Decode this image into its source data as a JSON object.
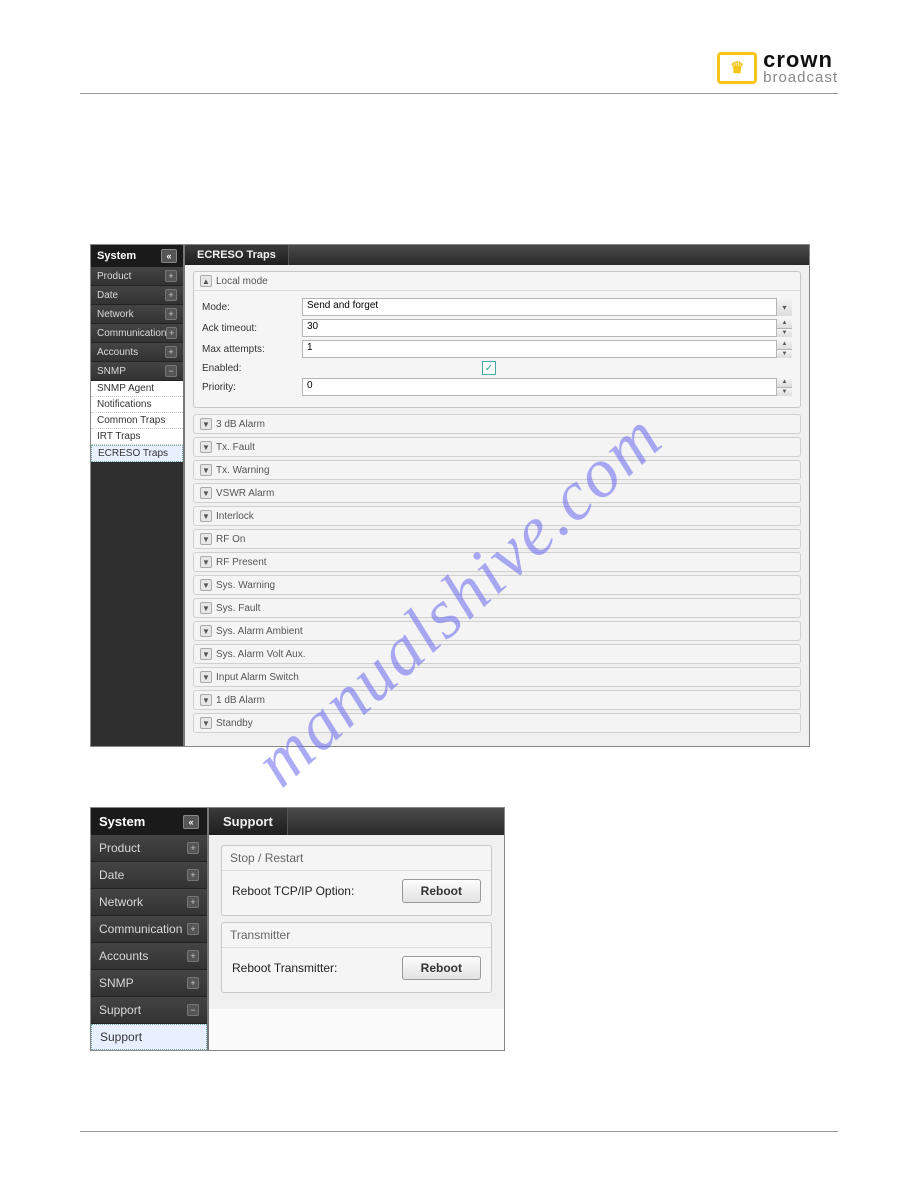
{
  "brand": {
    "name": "crown",
    "sub": "broadcast"
  },
  "watermark": "manualshive.com",
  "shotA": {
    "sidebar": {
      "header": "System",
      "items": [
        "Product",
        "Date",
        "Network",
        "Communication",
        "Accounts",
        "SNMP"
      ],
      "subs": [
        "SNMP Agent",
        "Notifications",
        "Common Traps",
        "IRT Traps",
        "ECRESO Traps"
      ],
      "selected_sub_index": 4
    },
    "tab": "ECRESO Traps",
    "local_mode": {
      "title": "Local mode",
      "mode_label": "Mode:",
      "mode_value": "Send and forget",
      "ack_label": "Ack timeout:",
      "ack_value": "30",
      "max_label": "Max attempts:",
      "max_value": "1",
      "enabled_label": "Enabled:",
      "enabled_checked": true,
      "priority_label": "Priority:",
      "priority_value": "0"
    },
    "collapsed": [
      "3 dB Alarm",
      "Tx. Fault",
      "Tx. Warning",
      "VSWR Alarm",
      "Interlock",
      "RF On",
      "RF Present",
      "Sys. Warning",
      "Sys. Fault",
      "Sys. Alarm Ambient",
      "Sys. Alarm Volt Aux.",
      "Input Alarm Switch",
      "1 dB Alarm",
      "Standby"
    ]
  },
  "shotB": {
    "sidebar": {
      "header": "System",
      "items": [
        "Product",
        "Date",
        "Network",
        "Communication",
        "Accounts",
        "SNMP",
        "Support"
      ],
      "subs": [
        "Support"
      ],
      "selected_sub_index": 0
    },
    "tab": "Support",
    "groups": [
      {
        "title": "Stop / Restart",
        "row_label": "Reboot TCP/IP Option:",
        "button": "Reboot"
      },
      {
        "title": "Transmitter",
        "row_label": "Reboot Transmitter:",
        "button": "Reboot"
      }
    ]
  },
  "colors": {
    "page_bg": "#ffffff",
    "panel_bg": "#f0f0f0",
    "sidebar_bg": "#2f2f2f",
    "tab_bg": "#2a2a2a",
    "accent": "#f5c518",
    "watermark": "#6a6af0",
    "border": "#c8c8c8",
    "check": "#2a8855"
  }
}
